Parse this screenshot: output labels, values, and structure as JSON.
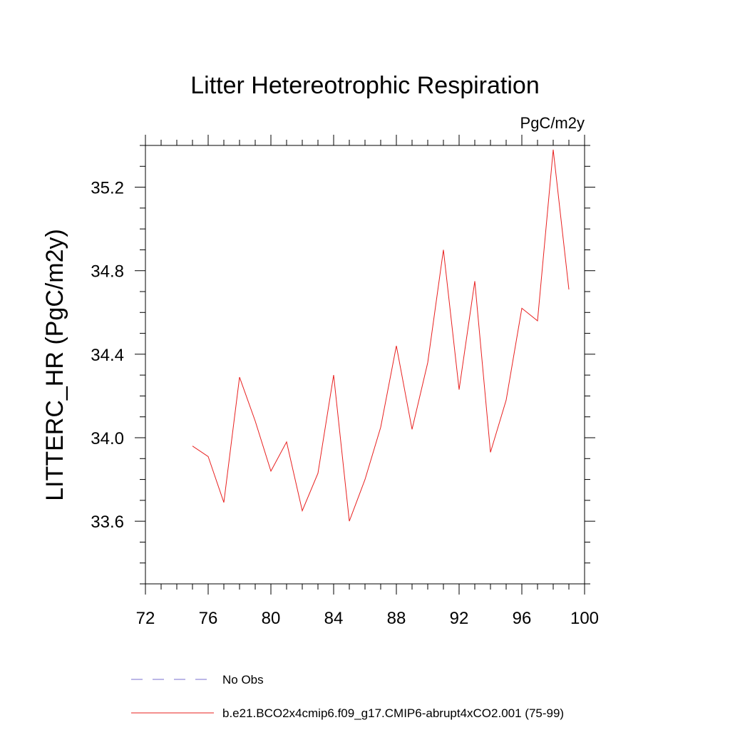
{
  "chart_data": {
    "type": "line",
    "title": "Litter Hetereotrophic Respiration",
    "units_label": "PgC/m2y",
    "xlabel": "",
    "ylabel": "LITTERC_HR  (PgC/m2y)",
    "xlim": [
      72,
      100
    ],
    "ylim": [
      33.3,
      35.4
    ],
    "x_ticks": [
      72,
      76,
      80,
      84,
      88,
      92,
      96,
      100
    ],
    "x_tick_labels": [
      "72",
      "76",
      "80",
      "84",
      "88",
      "92",
      "96",
      "100"
    ],
    "y_ticks": [
      33.6,
      34.0,
      34.4,
      34.8,
      35.2
    ],
    "y_tick_labels": [
      "33.6",
      "34.0",
      "34.4",
      "34.8",
      "35.2"
    ],
    "grid": false,
    "legend_position": "bottom",
    "series": [
      {
        "name": "b.e21.BCO2x4cmip6.f09_g17.CMIP6-abrupt4xCO2.001 (75-99)",
        "color": "#e8201f",
        "style": "solid",
        "x": [
          75,
          76,
          77,
          78,
          79,
          80,
          81,
          82,
          83,
          84,
          85,
          86,
          87,
          88,
          89,
          90,
          91,
          92,
          93,
          94,
          95,
          96,
          97,
          98,
          99
        ],
        "y": [
          33.96,
          33.91,
          33.69,
          34.29,
          34.08,
          33.84,
          33.98,
          33.65,
          33.83,
          34.3,
          33.6,
          33.8,
          34.05,
          34.44,
          34.04,
          34.36,
          34.9,
          34.23,
          34.75,
          33.93,
          34.18,
          34.62,
          34.56,
          35.38,
          34.71
        ]
      }
    ],
    "legend": [
      {
        "label": "No Obs",
        "color": "#7a6fcf",
        "style": "dashed"
      },
      {
        "label": "b.e21.BCO2x4cmip6.f09_g17.CMIP6-abrupt4xCO2.001 (75-99)",
        "color": "#e8201f",
        "style": "solid"
      }
    ]
  }
}
